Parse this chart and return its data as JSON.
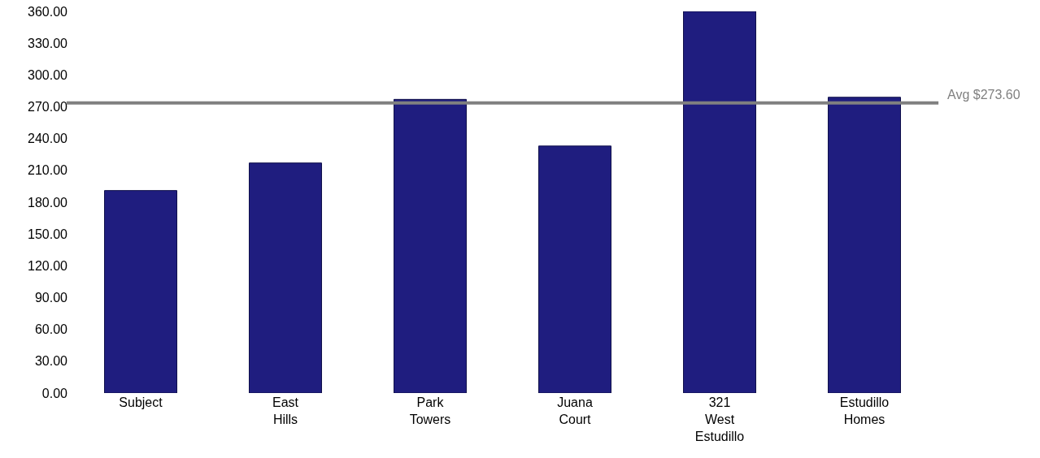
{
  "chart_data": {
    "type": "bar",
    "categories": [
      "Subject",
      "East Hills",
      "Park Towers",
      "Juana Court",
      "321 West Estudillo",
      "Estudillo Homes"
    ],
    "values": [
      191,
      217,
      277,
      233,
      360,
      279
    ],
    "color": "#1f1d7f",
    "ylim": [
      0,
      360
    ],
    "yticks": [
      {
        "value": 0,
        "label": "0.00"
      },
      {
        "value": 30,
        "label": "30.00"
      },
      {
        "value": 60,
        "label": "60.00"
      },
      {
        "value": 90,
        "label": "90.00"
      },
      {
        "value": 120,
        "label": "120.00"
      },
      {
        "value": 150,
        "label": "150.00"
      },
      {
        "value": 180,
        "label": "180.00"
      },
      {
        "value": 210,
        "label": "210.00"
      },
      {
        "value": 240,
        "label": "240.00"
      },
      {
        "value": 270,
        "label": "270.00"
      },
      {
        "value": 300,
        "label": "300.00"
      },
      {
        "value": 330,
        "label": "330.00"
      },
      {
        "value": 360,
        "label": "360.00"
      }
    ],
    "grid": false,
    "ref_lines": [
      {
        "axis": "y",
        "value": 273.6,
        "label": "Avg $273.60",
        "color": "#808080",
        "line_style": "solid"
      }
    ]
  }
}
